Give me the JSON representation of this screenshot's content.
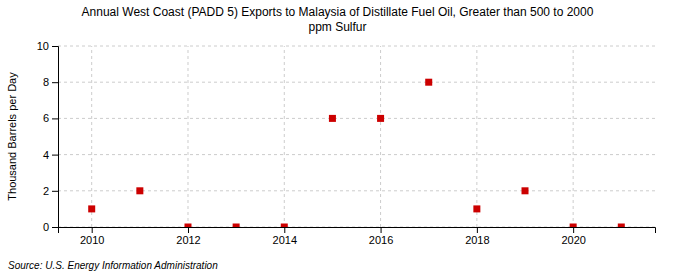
{
  "chart_data": {
    "type": "scatter",
    "title": "Annual West Coast (PADD 5) Exports to Malaysia of Distillate Fuel Oil, Greater than 500 to 2000\nppm Sulfur",
    "y_label": "Thousand Barrels per Day",
    "source": "Source: U.S. Energy Information Administration",
    "x": [
      2010,
      2011,
      2012,
      2013,
      2014,
      2015,
      2016,
      2017,
      2018,
      2019,
      2020,
      2021
    ],
    "values": [
      1,
      2,
      0,
      0,
      0,
      6,
      6,
      8,
      1,
      2,
      0,
      0
    ],
    "color": "#cc0000",
    "marker": "square",
    "xlim": [
      2009.3,
      2021.7
    ],
    "ylim": [
      0,
      10
    ],
    "xticks": [
      2010,
      2012,
      2014,
      2016,
      2018,
      2020
    ],
    "yticks": [
      0,
      2,
      4,
      6,
      8,
      10
    ],
    "grid": true
  }
}
